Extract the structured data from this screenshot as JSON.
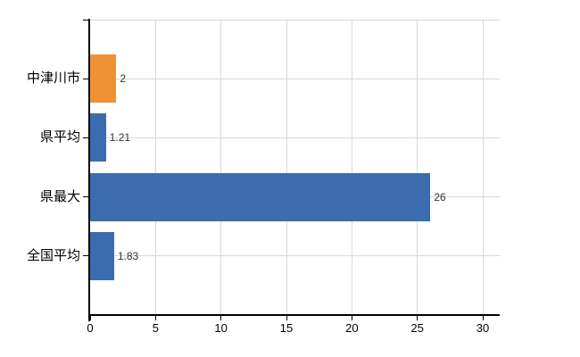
{
  "chart_data": {
    "type": "bar",
    "orientation": "horizontal",
    "title": "",
    "xlabel": "",
    "ylabel": "",
    "categories": [
      "中津川市",
      "県平均",
      "県最大",
      "全国平均"
    ],
    "values": [
      2,
      1.21,
      26,
      1.83
    ],
    "value_labels": [
      "2",
      "1.21",
      "26",
      "1.83"
    ],
    "bar_colors": [
      "#ee9236",
      "#3b6cae",
      "#3b6cae",
      "#3b6cae"
    ],
    "x_ticks": [
      0,
      5,
      10,
      15,
      20,
      25,
      30
    ],
    "x_tick_labels": [
      "0",
      "5",
      "10",
      "15",
      "20",
      "25",
      "30"
    ],
    "xlim": [
      0,
      30
    ],
    "grid": true,
    "legend": false,
    "colors": {
      "orange_bar": "#ee9236",
      "blue_bar": "#3b6cae",
      "gridline": "#d9d9d9",
      "axis": "#000000",
      "tick_label_text": "#000000",
      "value_label_text": "#333333",
      "background": "#ffffff"
    }
  }
}
